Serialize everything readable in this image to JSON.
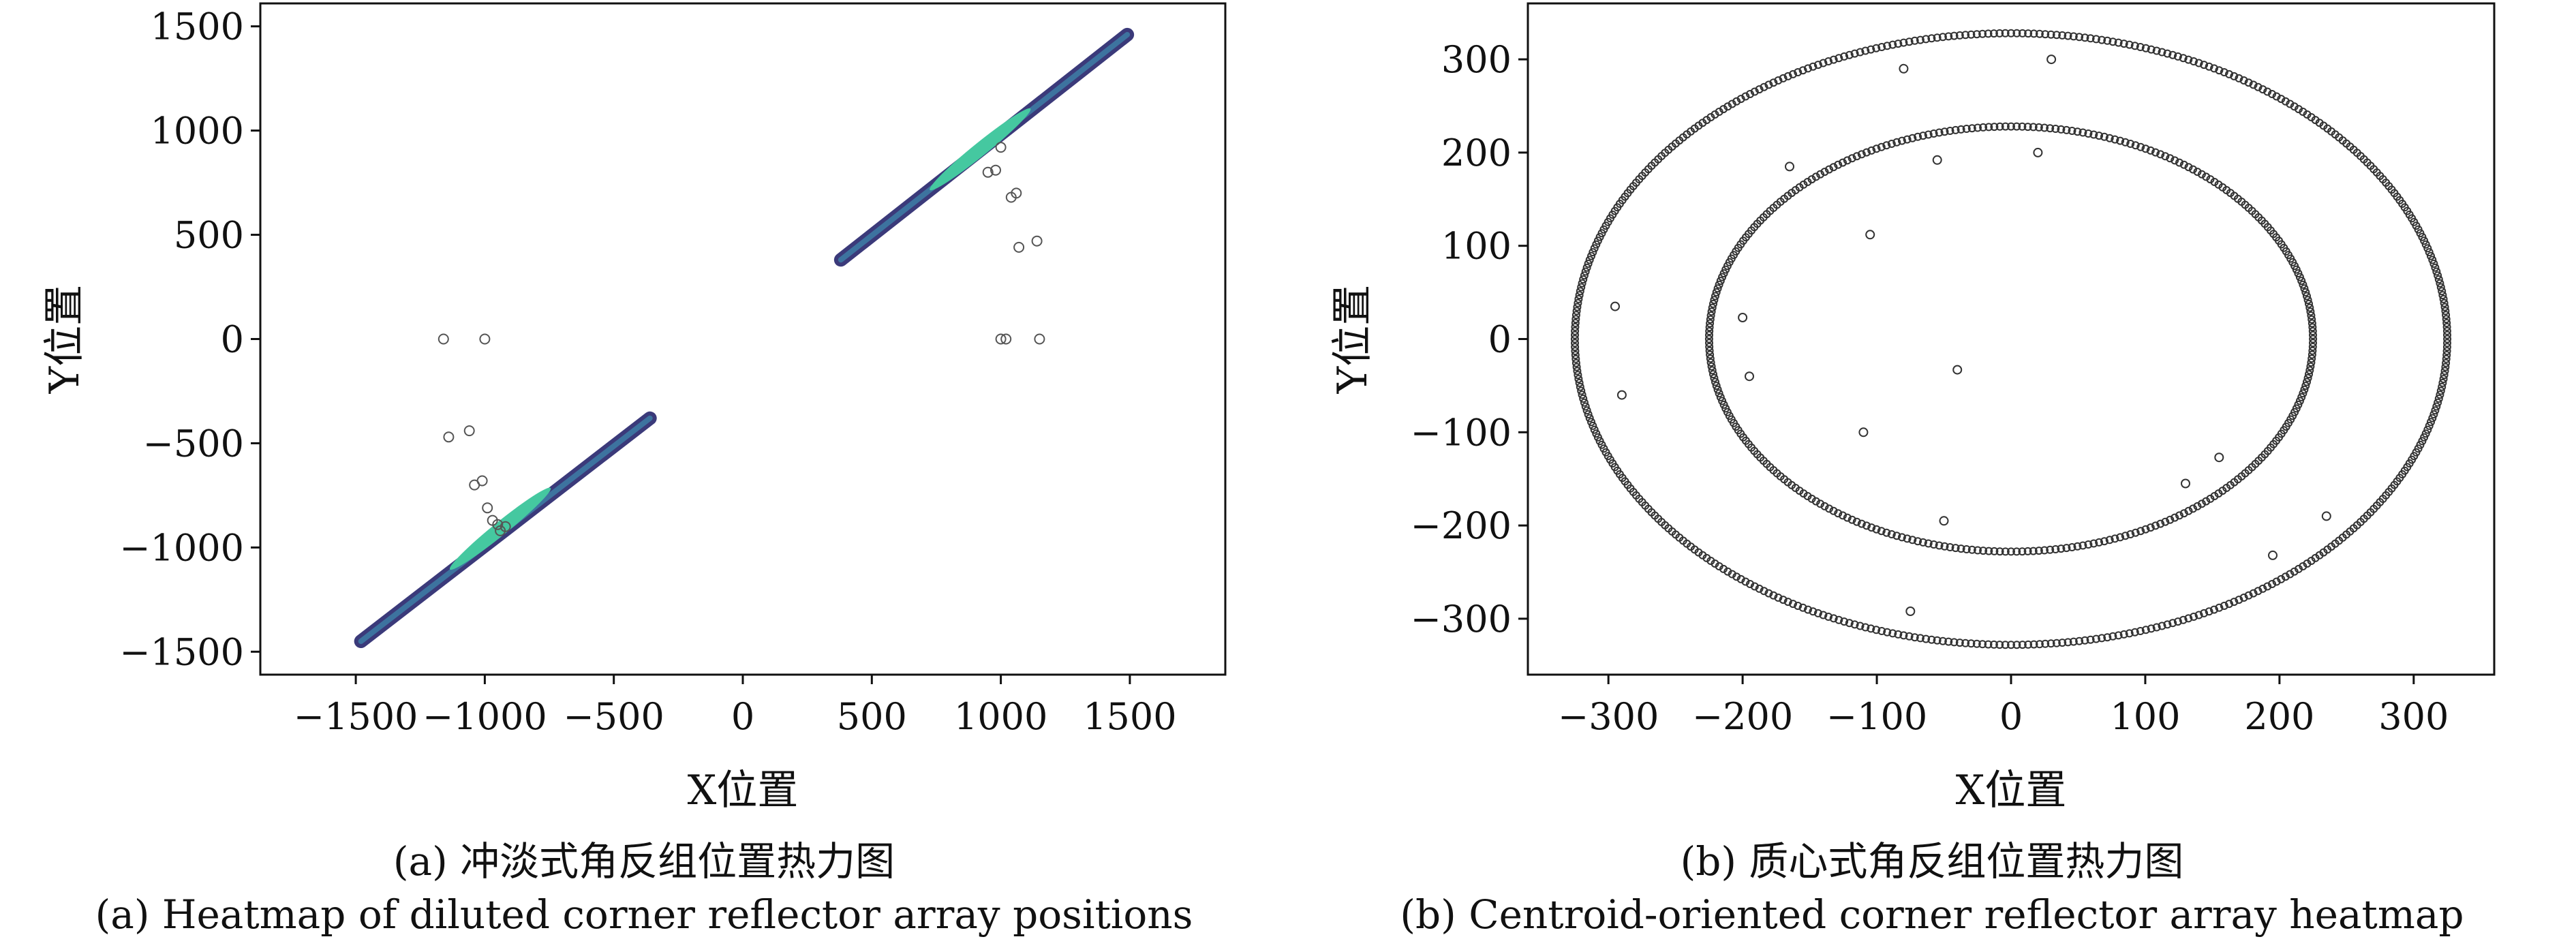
{
  "captions": {
    "a_zh": "(a) 冲淡式角反组位置热力图",
    "a_en": "(a) Heatmap of diluted corner reflector array positions",
    "b_zh": "(b) 质心式角反组位置热力图",
    "b_en": "(b) Centroid-oriented corner reflector array heatmap"
  },
  "chart_data": [
    {
      "type": "heatmap",
      "xlabel": "X位置",
      "ylabel": "Y位置",
      "xlim": [
        -1870,
        1870
      ],
      "ylim": [
        -1610,
        1610
      ],
      "xticks": [
        -1500,
        -1000,
        -500,
        0,
        500,
        1000,
        1500
      ],
      "yticks": [
        -1500,
        -1000,
        -500,
        0,
        500,
        1000,
        1500
      ],
      "grid": false,
      "colors": {
        "dark": "#3b3a7a",
        "mid": "#3e7ea6",
        "bright": "#45c8a0",
        "marker_edge": "#555555"
      },
      "density_segments": [
        {
          "from": [
            -1480,
            -1450
          ],
          "to": [
            -360,
            -380
          ]
        },
        {
          "from": [
            380,
            380
          ],
          "to": [
            1490,
            1460
          ]
        }
      ],
      "density_peaks": [
        [
          -940,
          -910
        ],
        [
          920,
          910
        ]
      ],
      "scatter": {
        "x": [
          -1160,
          -1000,
          -1140,
          -1060,
          -1040,
          -1010,
          -990,
          -970,
          -950,
          -940,
          -920,
          1000,
          1020,
          950,
          980,
          1040,
          1060,
          1070,
          1140,
          1000,
          1150
        ],
        "y": [
          0,
          0,
          -470,
          -440,
          -700,
          -680,
          -810,
          -870,
          -890,
          -920,
          -900,
          0,
          0,
          800,
          810,
          680,
          700,
          440,
          470,
          920,
          0
        ]
      }
    },
    {
      "type": "scatter",
      "xlabel": "X位置",
      "ylabel": "Y位置",
      "xlim": [
        -360,
        360
      ],
      "ylim": [
        -360,
        360
      ],
      "xticks": [
        -300,
        -200,
        -100,
        0,
        100,
        200,
        300
      ],
      "yticks": [
        -300,
        -200,
        -100,
        0,
        100,
        200,
        300
      ],
      "grid": false,
      "colors": {
        "marker_edge": "#333333"
      },
      "rings": [
        {
          "radius_x": 325,
          "radius_y": 328,
          "points": 480
        },
        {
          "radius_x": 225,
          "radius_y": 228,
          "points": 340
        }
      ],
      "scatter": {
        "x": [
          -80,
          30,
          -165,
          -55,
          20,
          -105,
          -295,
          -200,
          -290,
          -195,
          -40,
          -110,
          -50,
          130,
          155,
          195,
          235,
          -75
        ],
        "y": [
          290,
          300,
          185,
          192,
          200,
          112,
          35,
          23,
          -60,
          -40,
          -33,
          -100,
          -195,
          -155,
          -127,
          -232,
          -190,
          -292
        ]
      }
    }
  ]
}
